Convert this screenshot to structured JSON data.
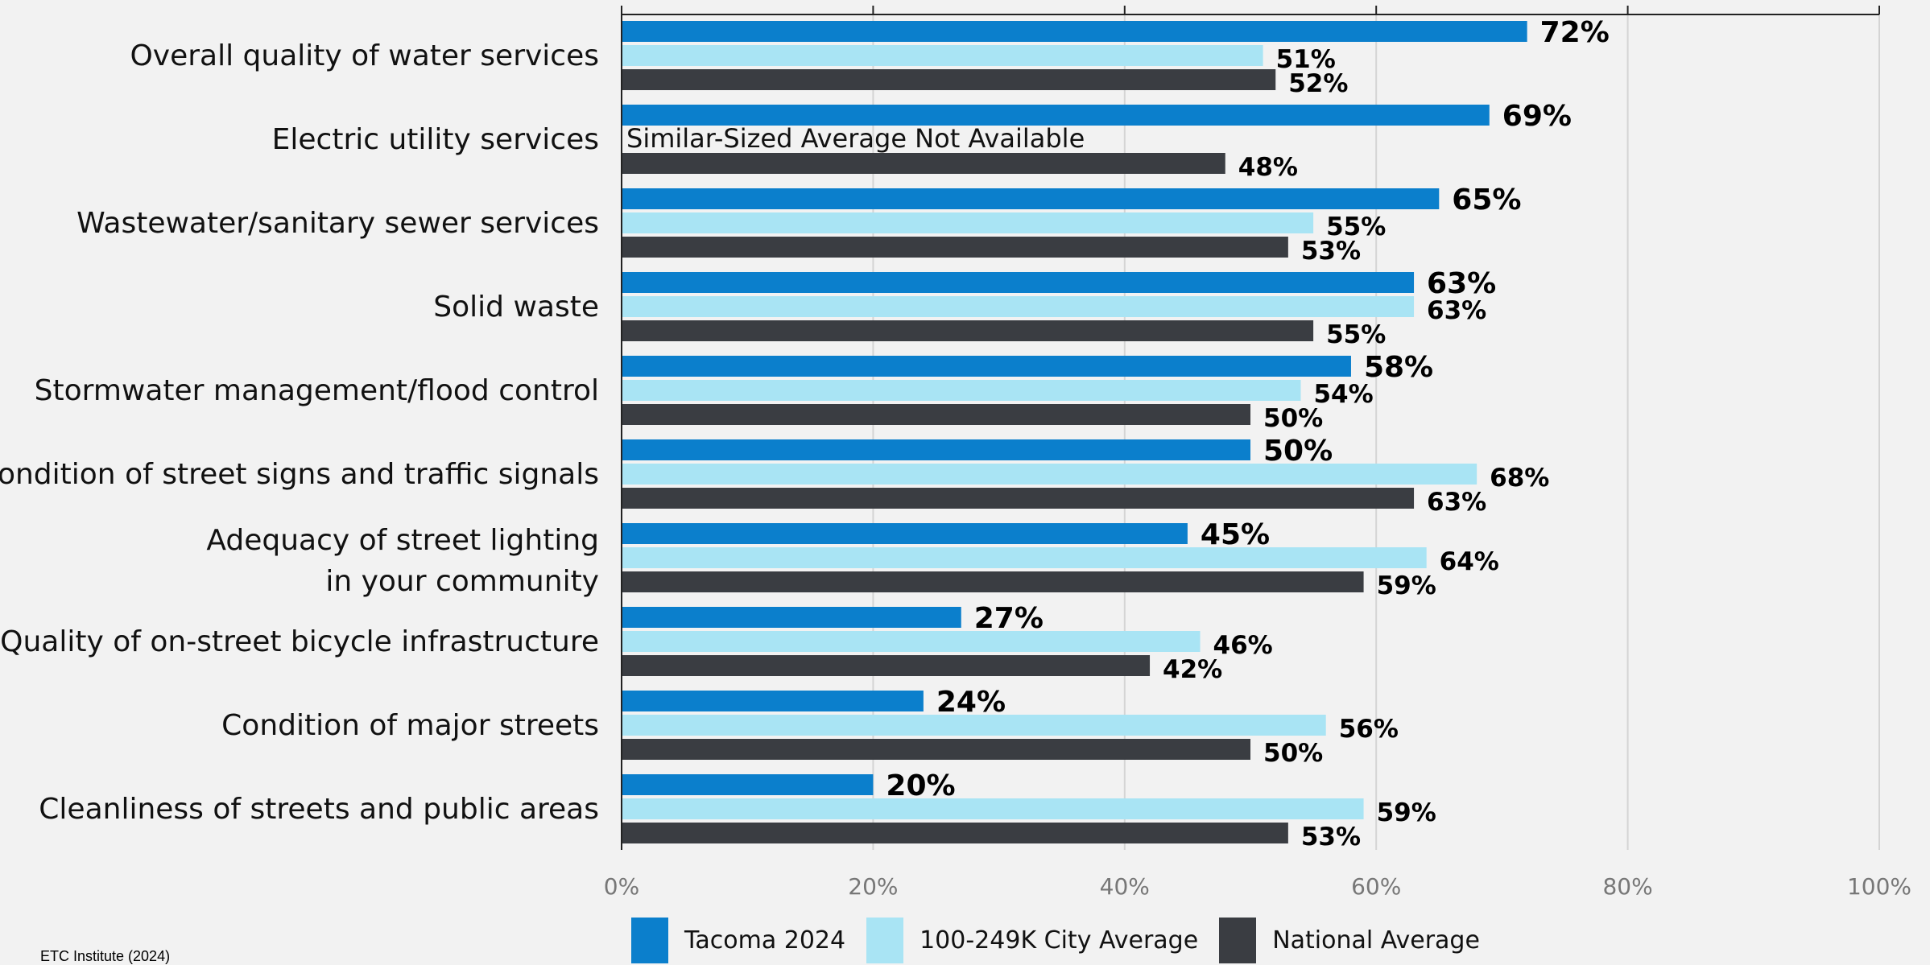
{
  "chart_data": {
    "type": "bar",
    "orientation": "horizontal",
    "categories": [
      [
        "Overall quality of water services"
      ],
      [
        "Electric utility services"
      ],
      [
        "Wastewater/sanitary sewer services"
      ],
      [
        "Solid waste"
      ],
      [
        "Stormwater management/flood control"
      ],
      [
        "Condition of street signs and traffic signals"
      ],
      [
        "Adequacy of street lighting",
        "in your community"
      ],
      [
        "Quality of on-street bicycle infrastructure"
      ],
      [
        "Condition of major streets"
      ],
      [
        "Cleanliness of streets and public areas"
      ]
    ],
    "series": [
      {
        "name": "Tacoma 2024",
        "color": "#0b7fcc",
        "values": [
          72,
          69,
          65,
          63,
          58,
          50,
          45,
          27,
          24,
          20
        ]
      },
      {
        "name": "100-249K City Average",
        "color": "#a9e4f4",
        "values": [
          51,
          null,
          55,
          63,
          54,
          68,
          64,
          46,
          56,
          59
        ]
      },
      {
        "name": "National Average",
        "color": "#3a3d42",
        "values": [
          52,
          48,
          53,
          55,
          50,
          63,
          59,
          42,
          50,
          53
        ]
      }
    ],
    "value_labels": [
      [
        "72%",
        "51%",
        "52%"
      ],
      [
        "69%",
        "",
        "48%"
      ],
      [
        "65%",
        "55%",
        "53%"
      ],
      [
        "63%",
        "63%",
        "55%"
      ],
      [
        "58%",
        "54%",
        "50%"
      ],
      [
        "50%",
        "68%",
        "63%"
      ],
      [
        "45%",
        "64%",
        "59%"
      ],
      [
        "27%",
        "46%",
        "42%"
      ],
      [
        "24%",
        "56%",
        "50%"
      ],
      [
        "20%",
        "59%",
        "53%"
      ]
    ],
    "not_available_text": "Similar-Sized Average Not Available",
    "xlim": [
      0,
      100
    ],
    "xticks": [
      "0%",
      "20%",
      "40%",
      "60%",
      "80%",
      "100%"
    ],
    "grid": true,
    "legend_position": "bottom"
  },
  "source": "ETC Institute (2024)"
}
